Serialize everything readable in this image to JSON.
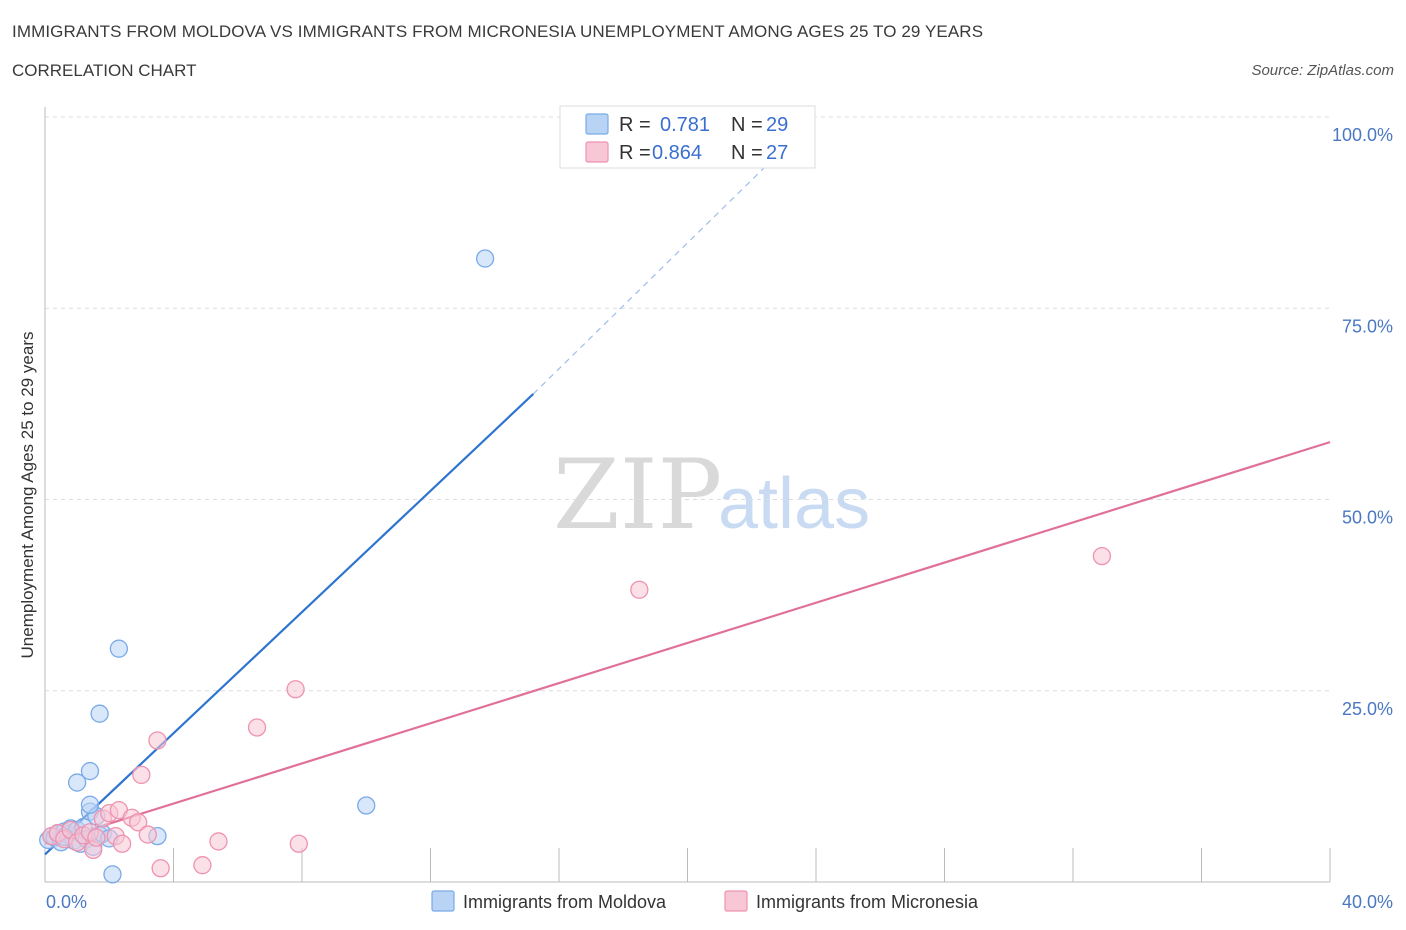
{
  "title": "IMMIGRANTS FROM MOLDOVA VS IMMIGRANTS FROM MICRONESIA UNEMPLOYMENT AMONG AGES 25 TO 29 YEARS",
  "subtitle": "CORRELATION CHART",
  "source": "Source: ZipAtlas.com",
  "watermark": {
    "zip": "ZIP",
    "atlas": "atlas"
  },
  "legend": {
    "r_label": "R =",
    "n_label": "N =",
    "rows": [
      {
        "series": "Immigrants from Moldova",
        "r": "0.781",
        "n": "29",
        "color": "#7aaae8",
        "fill": "#b9d3f5"
      },
      {
        "series": "Immigrants from Micronesia",
        "r": "0.864",
        "n": "27",
        "color": "#ee93b0",
        "fill": "#f8c7d6"
      }
    ]
  },
  "chart_data": {
    "type": "scatter",
    "title": "IMMIGRANTS FROM MOLDOVA VS IMMIGRANTS FROM MICRONESIA UNEMPLOYMENT AMONG AGES 25 TO 29 YEARS",
    "subtitle": "CORRELATION CHART",
    "xlabel": "",
    "ylabel": "Unemployment Among Ages 25 to 29 years",
    "xlim": [
      0,
      40
    ],
    "ylim": [
      0,
      100
    ],
    "x_tick_labels": [
      "0.0%",
      "40.0%"
    ],
    "y_tick_labels": [
      "100.0%",
      "75.0%",
      "50.0%",
      "25.0%"
    ],
    "y_tick_values": [
      100,
      75,
      50,
      25
    ],
    "grid": true,
    "legend_position": "top-center",
    "series": [
      {
        "name": "Immigrants from Moldova",
        "color": "#2f74d0",
        "marker_fill": "#b9d3f5",
        "marker_stroke": "#7aaae8",
        "points": [
          [
            0.1,
            5.5
          ],
          [
            0.2,
            6.0
          ],
          [
            0.3,
            5.8
          ],
          [
            0.4,
            6.3
          ],
          [
            0.5,
            5.2
          ],
          [
            0.6,
            6.6
          ],
          [
            0.7,
            6.2
          ],
          [
            0.8,
            7.0
          ],
          [
            0.9,
            5.4
          ],
          [
            1.0,
            6.8
          ],
          [
            1.1,
            5.0
          ],
          [
            1.2,
            7.2
          ],
          [
            1.3,
            5.6
          ],
          [
            1.4,
            9.2
          ],
          [
            1.5,
            4.6
          ],
          [
            1.6,
            8.6
          ],
          [
            1.0,
            13.0
          ],
          [
            1.4,
            14.5
          ],
          [
            1.7,
            6.1
          ],
          [
            1.8,
            6.3
          ],
          [
            1.4,
            10.1
          ],
          [
            1.7,
            22.0
          ],
          [
            2.0,
            5.7
          ],
          [
            2.1,
            1.0
          ],
          [
            2.3,
            30.5
          ],
          [
            3.5,
            6.0
          ],
          [
            10.0,
            10.0
          ],
          [
            13.7,
            81.5
          ],
          [
            0.6,
            5.9
          ]
        ],
        "trend": {
          "x": [
            0.0,
            15.2
          ],
          "y": [
            3.6,
            63.8
          ],
          "dashed_to": [
            24.0,
            100.0
          ]
        }
      },
      {
        "name": "Immigrants from Micronesia",
        "color": "#e0709a",
        "marker_fill": "#f8c7d6",
        "marker_stroke": "#ee93b0",
        "points": [
          [
            0.2,
            6.0
          ],
          [
            0.4,
            6.4
          ],
          [
            0.6,
            5.6
          ],
          [
            0.8,
            6.8
          ],
          [
            1.0,
            5.2
          ],
          [
            1.2,
            6.1
          ],
          [
            1.4,
            6.5
          ],
          [
            1.5,
            4.2
          ],
          [
            1.6,
            5.8
          ],
          [
            1.8,
            8.3
          ],
          [
            2.0,
            9.0
          ],
          [
            2.2,
            6.0
          ],
          [
            2.3,
            9.4
          ],
          [
            2.4,
            5.0
          ],
          [
            2.7,
            8.4
          ],
          [
            2.9,
            7.8
          ],
          [
            3.0,
            14.0
          ],
          [
            3.2,
            6.2
          ],
          [
            3.5,
            18.5
          ],
          [
            3.6,
            1.8
          ],
          [
            4.9,
            2.2
          ],
          [
            5.4,
            5.3
          ],
          [
            6.6,
            20.2
          ],
          [
            7.8,
            25.2
          ],
          [
            7.9,
            5.0
          ],
          [
            18.5,
            38.2
          ],
          [
            32.9,
            42.6
          ]
        ],
        "trend": {
          "x": [
            0.0,
            40.0
          ],
          "y": [
            5.0,
            57.5
          ]
        }
      }
    ]
  }
}
